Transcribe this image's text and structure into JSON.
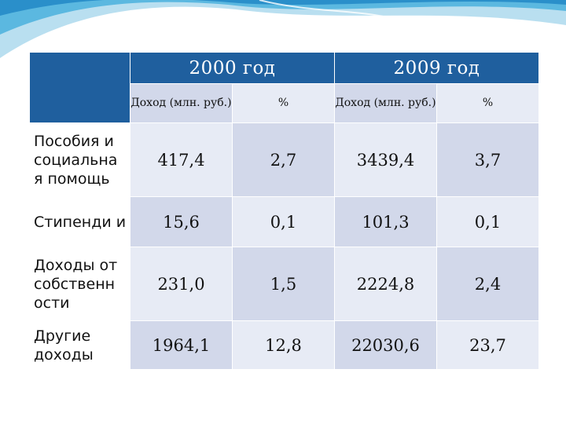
{
  "slide": {
    "accent_color": "#1f5f9e",
    "light_cell_color": "#e7ebf5",
    "dark_cell_color": "#d2d8ea"
  },
  "table": {
    "years": [
      "2000 год",
      "2009 год"
    ],
    "sub_headers": [
      "Доход (млн. руб.)",
      "%",
      "Доход (млн. руб.)",
      "%"
    ],
    "rows": [
      {
        "label": "Пособия и социальна я помощь",
        "values": [
          "417,4",
          "2,7",
          "3439,4",
          "3,7"
        ]
      },
      {
        "label": "Стипенди и",
        "values": [
          "15,6",
          "0,1",
          "101,3",
          "0,1"
        ]
      },
      {
        "label": "Доходы от собственн ости",
        "values": [
          "231,0",
          "1,5",
          "2224,8",
          "2,4"
        ]
      },
      {
        "label": "Другие доходы",
        "values": [
          "1964,1",
          "12,8",
          "22030,6",
          "23,7"
        ]
      }
    ]
  }
}
